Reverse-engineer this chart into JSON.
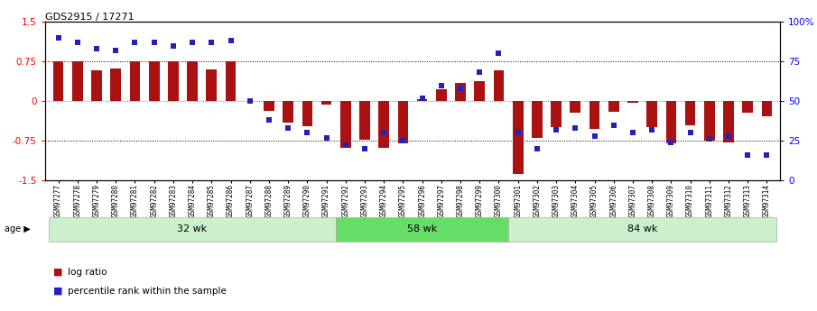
{
  "title": "GDS2915 / 17271",
  "samples": [
    "GSM97277",
    "GSM97278",
    "GSM97279",
    "GSM97280",
    "GSM97281",
    "GSM97282",
    "GSM97283",
    "GSM97284",
    "GSM97285",
    "GSM97286",
    "GSM97287",
    "GSM97288",
    "GSM97289",
    "GSM97290",
    "GSM97291",
    "GSM97292",
    "GSM97293",
    "GSM97294",
    "GSM97295",
    "GSM97296",
    "GSM97297",
    "GSM97298",
    "GSM97299",
    "GSM97300",
    "GSM97301",
    "GSM97302",
    "GSM97303",
    "GSM97304",
    "GSM97305",
    "GSM97306",
    "GSM97307",
    "GSM97308",
    "GSM97309",
    "GSM97310",
    "GSM97311",
    "GSM97312",
    "GSM97313",
    "GSM97314"
  ],
  "log_ratio": [
    0.75,
    0.75,
    0.58,
    0.62,
    0.75,
    0.75,
    0.75,
    0.75,
    0.6,
    0.75,
    0.0,
    -0.18,
    -0.4,
    -0.48,
    -0.06,
    -0.88,
    -0.73,
    -0.88,
    -0.8,
    0.03,
    0.22,
    0.35,
    0.38,
    0.58,
    -1.38,
    -0.7,
    -0.5,
    -0.22,
    -0.52,
    -0.2,
    -0.03,
    -0.5,
    -0.8,
    -0.45,
    -0.75,
    -0.78,
    -0.22,
    -0.28
  ],
  "percentile": [
    90,
    87,
    83,
    82,
    87,
    87,
    85,
    87,
    87,
    88,
    50,
    38,
    33,
    30,
    27,
    22,
    20,
    30,
    25,
    52,
    60,
    58,
    68,
    80,
    30,
    20,
    32,
    33,
    28,
    35,
    30,
    32,
    24,
    30,
    26,
    28,
    16,
    16
  ],
  "groups": [
    {
      "label": "32 wk",
      "start": 0,
      "end": 15,
      "color": "#ccf0cc"
    },
    {
      "label": "58 wk",
      "start": 15,
      "end": 24,
      "color": "#66dd66"
    },
    {
      "label": "84 wk",
      "start": 24,
      "end": 38,
      "color": "#ccf0cc"
    }
  ],
  "ylim": [
    -1.5,
    1.5
  ],
  "yticks_left": [
    -1.5,
    -0.75,
    0.0,
    0.75,
    1.5
  ],
  "yticks_right": [
    0,
    25,
    50,
    75,
    100
  ],
  "ytick_right_labels": [
    "0",
    "25",
    "50",
    "75",
    "100%"
  ],
  "hlines": [
    0.75,
    -0.75
  ],
  "zero_line_color": "#cc3333",
  "bar_color": "#aa1111",
  "dot_color": "#2222bb",
  "bar_width": 0.55,
  "dot_size": 22,
  "background_color": "#ffffff",
  "plot_bg": "#f5f5f5",
  "legend_items": [
    {
      "label": "log ratio",
      "color": "#aa1111"
    },
    {
      "label": "percentile rank within the sample",
      "color": "#2222bb"
    }
  ]
}
